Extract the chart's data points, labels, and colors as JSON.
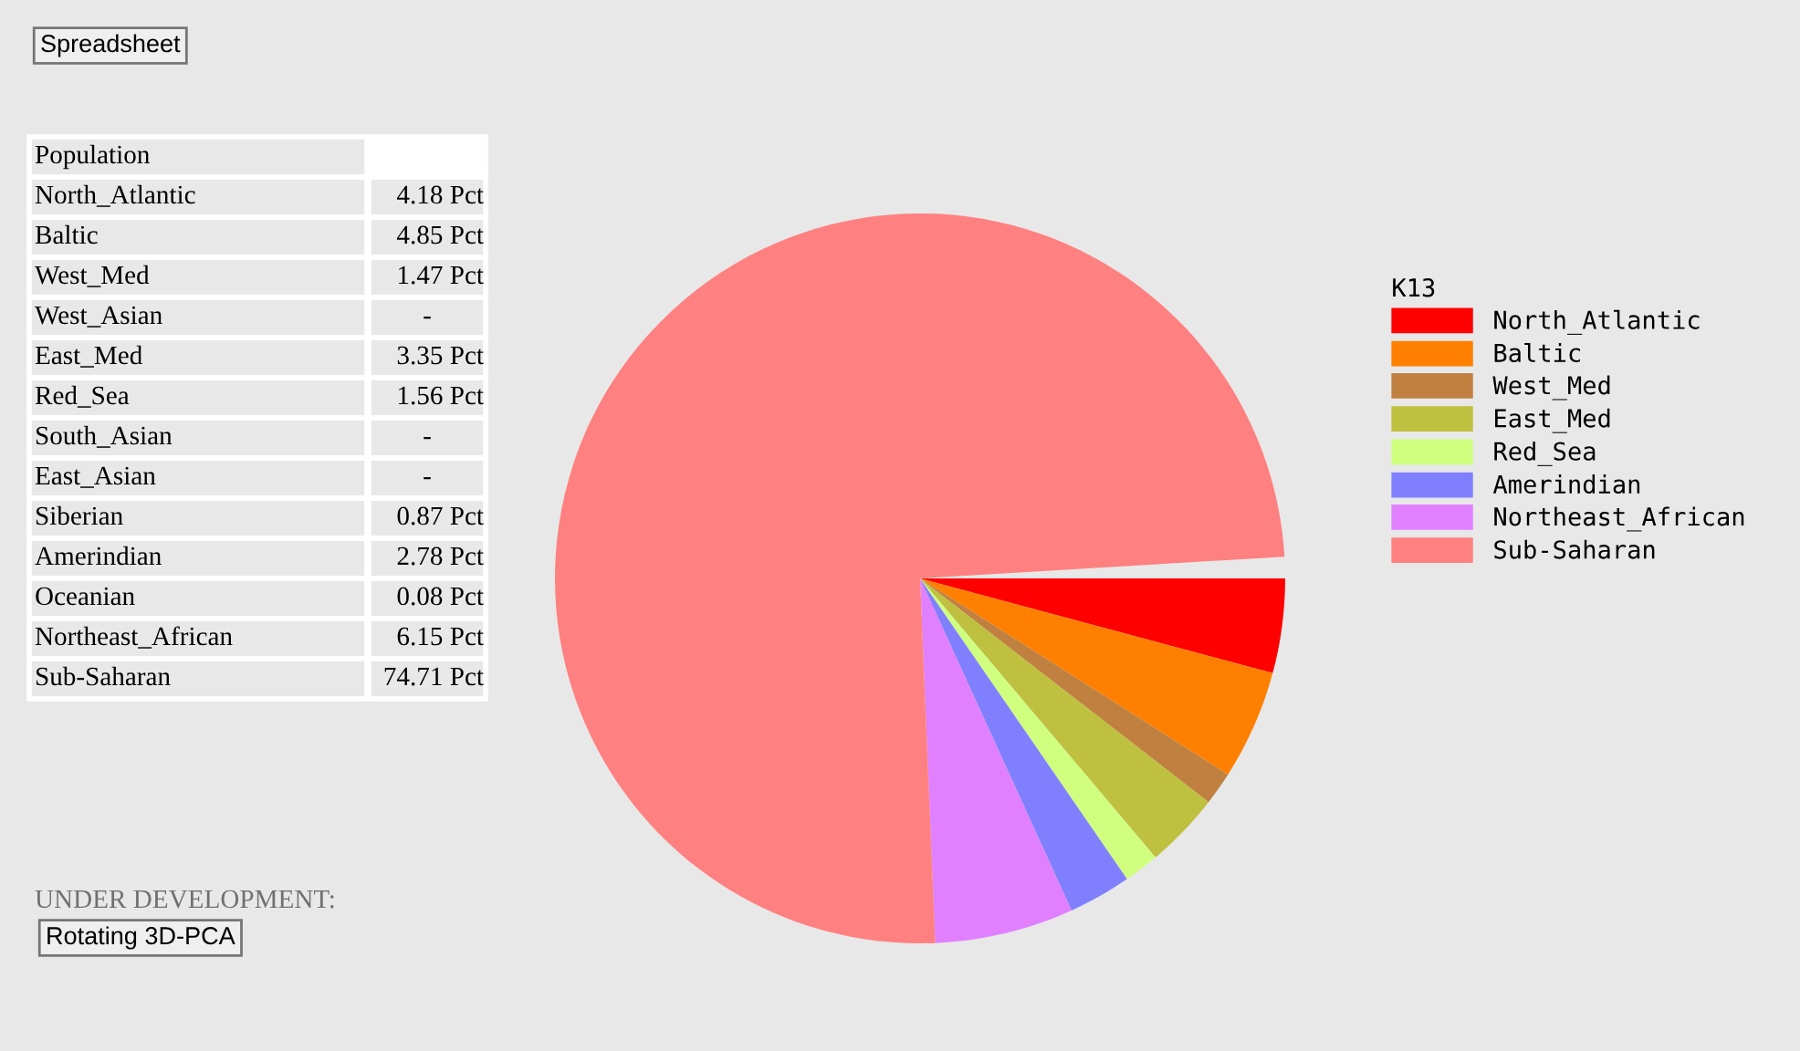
{
  "chart_data": [
    {
      "type": "other",
      "annotations": [
        "Spreadsheet",
        "Population",
        "North_Atlantic",
        "4.18 Pct",
        "Baltic",
        "4.85 Pct",
        "West_Med",
        "1.47 Pct",
        "West_Asian",
        "-",
        "East_Med",
        "3.35 Pct",
        "Red_Sea",
        "1.56 Pct",
        "South_Asian",
        "-",
        "East_Asian",
        "-",
        "Siberian",
        "0.87 Pct",
        "Amerindian",
        "2.78 Pct",
        "Oceanian",
        "0.08 Pct",
        "Northeast_African",
        "6.15 Pct",
        "Sub-Saharan",
        "74.71 Pct",
        "UNDER DEVELOPMENT:",
        "Rotating 3D-PCA"
      ]
    },
    {
      "type": "pie",
      "legend_title": "K13",
      "legend": "right",
      "categories": [
        "North_Atlantic",
        "Baltic",
        "West_Med",
        "East_Med",
        "Red_Sea",
        "Amerindian",
        "Northeast_African",
        "Sub-Saharan"
      ],
      "values": [
        4.18,
        4.85,
        1.47,
        3.35,
        1.56,
        2.78,
        6.15,
        74.71
      ],
      "colors": [
        "#ff0000",
        "#ff8000",
        "#c08040",
        "#c0c040",
        "#d0ff80",
        "#8080ff",
        "#e080ff",
        "#ff8080"
      ]
    }
  ]
}
